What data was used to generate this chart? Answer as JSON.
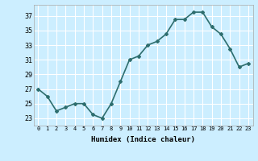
{
  "x": [
    0,
    1,
    2,
    3,
    4,
    5,
    6,
    7,
    8,
    9,
    10,
    11,
    12,
    13,
    14,
    15,
    16,
    17,
    18,
    19,
    20,
    21,
    22,
    23
  ],
  "y": [
    27,
    26,
    24,
    24.5,
    25,
    25,
    23.5,
    23,
    25,
    28,
    31,
    31.5,
    33,
    33.5,
    34.5,
    36.5,
    36.5,
    37.5,
    37.5,
    35.5,
    34.5,
    32.5,
    30,
    30.5
  ],
  "xlabel": "Humidex (Indice chaleur)",
  "ylim": [
    22,
    38.5
  ],
  "xlim": [
    -0.5,
    23.5
  ],
  "yticks": [
    23,
    25,
    27,
    29,
    31,
    33,
    35,
    37
  ],
  "xtick_labels": [
    "0",
    "1",
    "2",
    "3",
    "4",
    "5",
    "6",
    "7",
    "8",
    "9",
    "10",
    "11",
    "12",
    "13",
    "14",
    "15",
    "16",
    "17",
    "18",
    "19",
    "20",
    "21",
    "22",
    "23"
  ],
  "line_color": "#2e6e6e",
  "marker": "D",
  "marker_size": 2,
  "bg_color": "#cceeff",
  "grid_color": "#ffffff",
  "line_width": 1.2,
  "font_family": "monospace",
  "ytick_fontsize": 6,
  "xtick_fontsize": 5,
  "xlabel_fontsize": 6.5
}
